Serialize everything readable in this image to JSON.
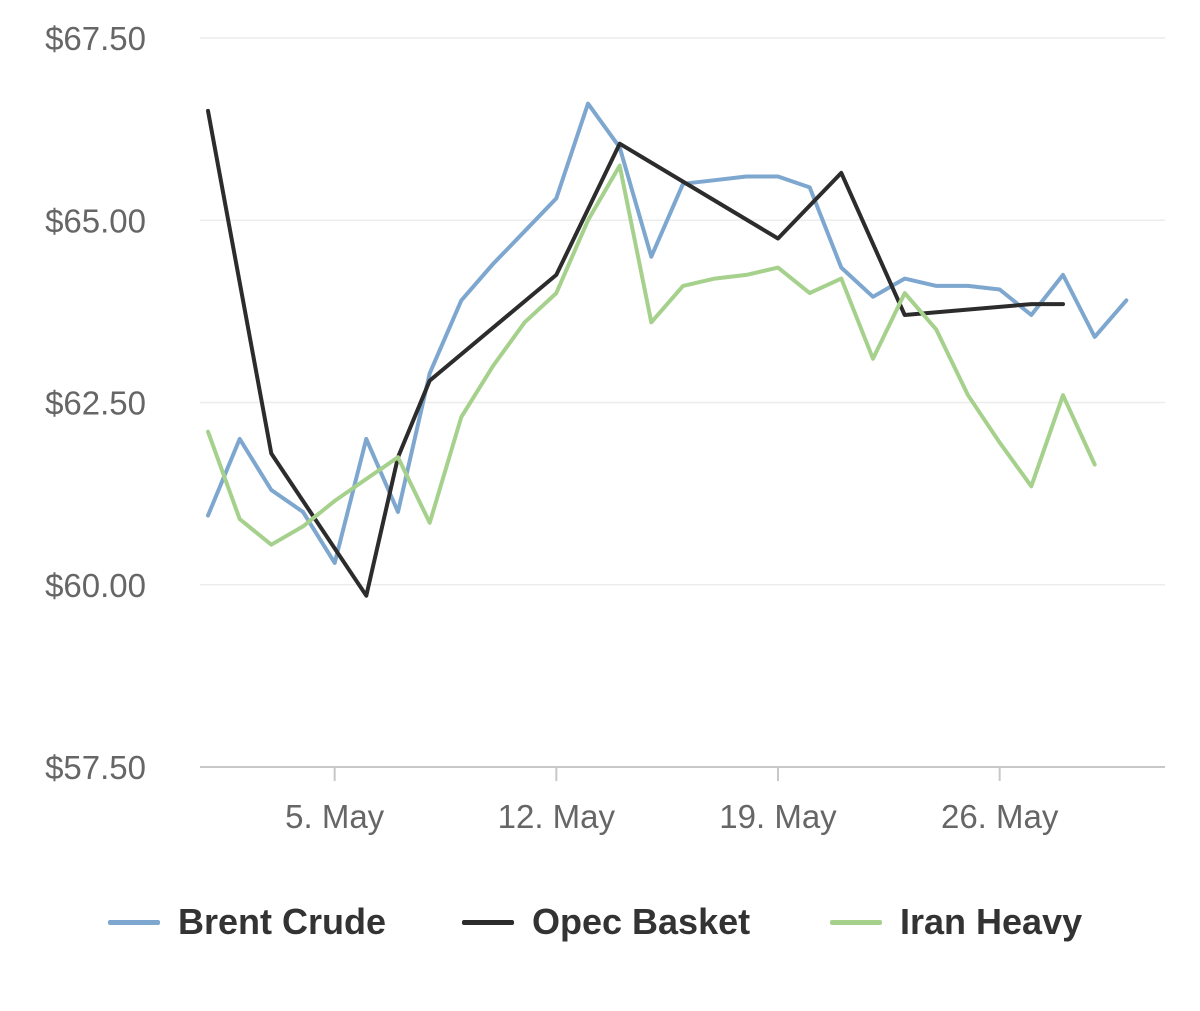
{
  "chart_data": {
    "type": "line",
    "x_axis": {
      "start_day": 1,
      "end_day": 31,
      "ticks": [
        {
          "day": 5,
          "label": "5. May"
        },
        {
          "day": 12,
          "label": "12. May"
        },
        {
          "day": 19,
          "label": "19. May"
        },
        {
          "day": 26,
          "label": "26. May"
        }
      ]
    },
    "y_axis": {
      "min": 57.5,
      "max": 67.5,
      "ticks": [
        {
          "value": 57.5,
          "label": "$57.50"
        },
        {
          "value": 60.0,
          "label": "$60.00"
        },
        {
          "value": 62.5,
          "label": "$62.50"
        },
        {
          "value": 65.0,
          "label": "$65.00"
        },
        {
          "value": 67.5,
          "label": "$67.50"
        }
      ]
    },
    "grid": true,
    "legend_position": "bottom",
    "series": [
      {
        "name": "Brent Crude",
        "color": "#7ea7cf",
        "points": [
          [
            1,
            60.95
          ],
          [
            2,
            62.0
          ],
          [
            3,
            61.3
          ],
          [
            4,
            61.0
          ],
          [
            5,
            60.3
          ],
          [
            6,
            62.0
          ],
          [
            7,
            61.0
          ],
          [
            8,
            62.9
          ],
          [
            9,
            63.9
          ],
          [
            10,
            64.4
          ],
          [
            11,
            64.85
          ],
          [
            12,
            65.3
          ],
          [
            13,
            66.6
          ],
          [
            14,
            66.0
          ],
          [
            15,
            64.5
          ],
          [
            16,
            65.5
          ],
          [
            17,
            65.55
          ],
          [
            18,
            65.6
          ],
          [
            19,
            65.6
          ],
          [
            20,
            65.45
          ],
          [
            21,
            64.35
          ],
          [
            22,
            63.95
          ],
          [
            23,
            64.2
          ],
          [
            24,
            64.1
          ],
          [
            25,
            64.1
          ],
          [
            26,
            64.05
          ],
          [
            27,
            63.7
          ],
          [
            28,
            64.25
          ],
          [
            29,
            63.4
          ],
          [
            30,
            63.9
          ]
        ]
      },
      {
        "name": "Opec Basket",
        "color": "#2c2c2c",
        "points": [
          [
            1,
            66.5
          ],
          [
            3,
            61.8
          ],
          [
            6,
            59.85
          ],
          [
            7,
            61.75
          ],
          [
            8,
            62.8
          ],
          [
            12,
            64.25
          ],
          [
            14,
            66.05
          ],
          [
            19,
            64.75
          ],
          [
            21,
            65.65
          ],
          [
            23,
            63.7
          ],
          [
            27,
            63.85
          ],
          [
            28,
            63.85
          ]
        ]
      },
      {
        "name": "Iran Heavy",
        "color": "#a6d18c",
        "points": [
          [
            1,
            62.1
          ],
          [
            2,
            60.9
          ],
          [
            3,
            60.55
          ],
          [
            4,
            60.8
          ],
          [
            5,
            61.15
          ],
          [
            6,
            61.45
          ],
          [
            7,
            61.75
          ],
          [
            8,
            60.85
          ],
          [
            9,
            62.3
          ],
          [
            10,
            63.0
          ],
          [
            11,
            63.6
          ],
          [
            12,
            64.0
          ],
          [
            13,
            65.0
          ],
          [
            14,
            65.75
          ],
          [
            15,
            63.6
          ],
          [
            16,
            64.1
          ],
          [
            17,
            64.2
          ],
          [
            18,
            64.25
          ],
          [
            19,
            64.35
          ],
          [
            20,
            64.0
          ],
          [
            21,
            64.2
          ],
          [
            22,
            63.1
          ],
          [
            23,
            64.0
          ],
          [
            24,
            63.5
          ],
          [
            25,
            62.6
          ],
          [
            26,
            61.95
          ],
          [
            27,
            61.35
          ],
          [
            28,
            62.6
          ],
          [
            29,
            61.65
          ]
        ]
      }
    ]
  }
}
